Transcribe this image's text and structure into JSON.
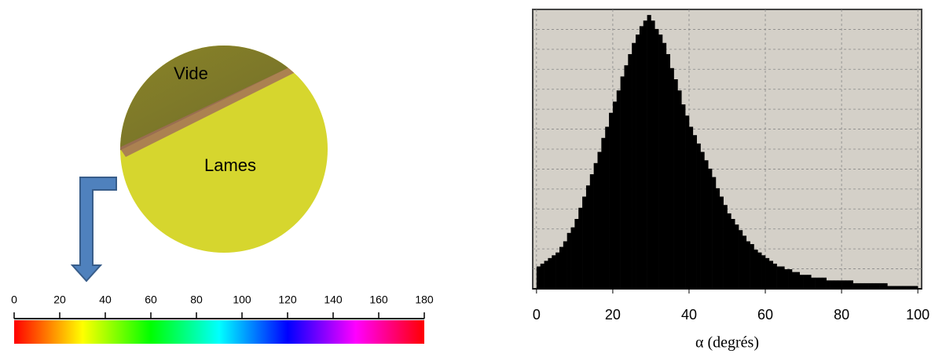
{
  "image": {
    "labels": [
      "Vide",
      "Lames"
    ]
  },
  "colorbar": {
    "lim": [
      0,
      180
    ],
    "ticks": [
      0,
      20,
      40,
      60,
      80,
      100,
      120,
      140,
      160,
      180
    ]
  },
  "chart_data": {
    "type": "histogram",
    "xlabel": "α (degrés)",
    "color": "#000000",
    "xlim": [
      -1,
      101
    ],
    "xticks": [
      0,
      20,
      40,
      60,
      80,
      100
    ],
    "ylim": [
      0,
      100
    ],
    "grid": true,
    "bins": [
      0,
      1,
      2,
      3,
      4,
      5,
      6,
      7,
      8,
      9,
      10,
      11,
      12,
      13,
      14,
      15,
      16,
      17,
      18,
      19,
      20,
      21,
      22,
      23,
      24,
      25,
      26,
      27,
      28,
      29,
      30,
      31,
      32,
      33,
      34,
      35,
      36,
      37,
      38,
      39,
      40,
      41,
      42,
      43,
      44,
      45,
      46,
      47,
      48,
      49,
      50,
      51,
      52,
      53,
      54,
      55,
      56,
      57,
      58,
      59,
      60,
      61,
      62,
      63,
      64,
      65,
      66,
      67,
      68,
      69,
      70,
      71,
      72,
      73,
      74,
      75,
      76,
      77,
      78,
      79,
      80,
      81,
      82,
      83,
      84,
      85,
      86,
      87,
      88,
      89,
      90,
      91,
      92,
      93,
      94,
      95,
      96,
      97,
      98,
      99,
      100
    ],
    "values": [
      8,
      9,
      10,
      11,
      12,
      13,
      15,
      17,
      20,
      22,
      25,
      29,
      33,
      37,
      41,
      45,
      49,
      54,
      58,
      63,
      67,
      71,
      76,
      80,
      84,
      88,
      91,
      94,
      96,
      98,
      96,
      93,
      91,
      88,
      84,
      79,
      75,
      71,
      66,
      62,
      58,
      55,
      52,
      49,
      46,
      43,
      40,
      36,
      33,
      30,
      27,
      25,
      23,
      21,
      19,
      17,
      16,
      14,
      13,
      12,
      11,
      10,
      9,
      8,
      8,
      7,
      7,
      6,
      6,
      5,
      5,
      5,
      4,
      4,
      4,
      4,
      3,
      3,
      3,
      3,
      3,
      3,
      3,
      2,
      2,
      2,
      2,
      2,
      2,
      2,
      2,
      2,
      1,
      1,
      1,
      1,
      1,
      1,
      1,
      1
    ]
  }
}
